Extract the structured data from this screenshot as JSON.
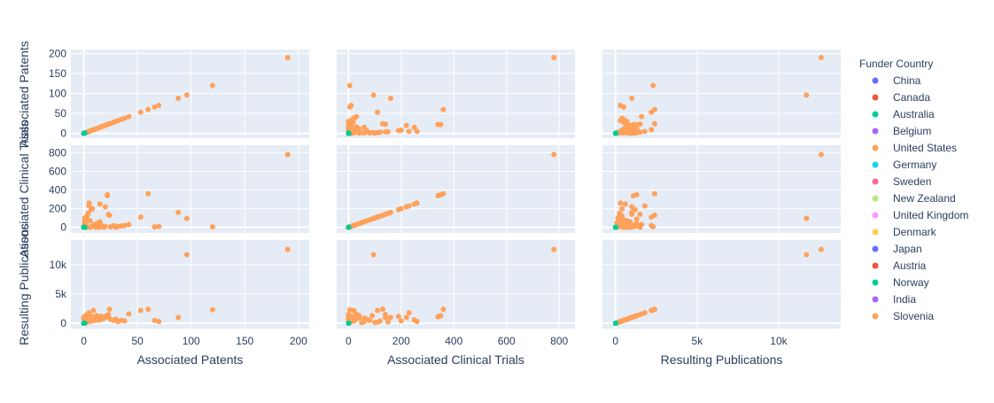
{
  "chart_data": {
    "type": "scatter",
    "variables": [
      {
        "name": "Associated Patents",
        "row_label": "Associated Patents",
        "col_label": "Associated Patents",
        "range": [
          -12,
          210
        ],
        "ticks": [
          0,
          50,
          100,
          150,
          200
        ],
        "tick_labels": [
          "0",
          "50",
          "100",
          "150",
          "200"
        ],
        "row_range": [
          -12,
          210
        ],
        "row_ticks": [
          0,
          50,
          100,
          150,
          200
        ],
        "row_tick_labels": [
          "0",
          "50",
          "100",
          "150",
          "200"
        ]
      },
      {
        "name": "Associated Clinical Trials",
        "row_label": "Associated Clinical Trials",
        "col_label": "Associated Clinical Trials",
        "range": [
          -45,
          860
        ],
        "ticks": [
          0,
          200,
          400,
          600,
          800
        ],
        "tick_labels": [
          "0",
          "200",
          "400",
          "600",
          "800"
        ],
        "row_range": [
          -60,
          880
        ],
        "row_ticks": [
          0,
          200,
          400,
          600,
          800
        ],
        "row_tick_labels": [
          "0",
          "200",
          "400",
          "600",
          "800"
        ]
      },
      {
        "name": "Resulting Publications",
        "row_label": "Resulting Publications",
        "col_label": "Resulting Publications",
        "range": [
          -800,
          13800
        ],
        "ticks": [
          0,
          5000,
          10000
        ],
        "tick_labels": [
          "0",
          "5k",
          "10k"
        ],
        "row_range": [
          -900,
          14200
        ],
        "row_ticks": [
          0,
          5000,
          10000
        ],
        "row_tick_labels": [
          "0",
          "5k",
          "10k"
        ]
      }
    ],
    "legend": {
      "title": "Funder Country",
      "position": "right",
      "entries": [
        {
          "name": "China",
          "color": "#636efa"
        },
        {
          "name": "Canada",
          "color": "#EF553B"
        },
        {
          "name": "Australia",
          "color": "#00cc96"
        },
        {
          "name": "Belgium",
          "color": "#ab63fa"
        },
        {
          "name": "United States",
          "color": "#FFA15A"
        },
        {
          "name": "Germany",
          "color": "#19d3f3"
        },
        {
          "name": "Sweden",
          "color": "#FF6692"
        },
        {
          "name": "New Zealand",
          "color": "#B6E880"
        },
        {
          "name": "United Kingdom",
          "color": "#FF97FF"
        },
        {
          "name": "Denmark",
          "color": "#FECB52"
        },
        {
          "name": "Japan",
          "color": "#636efa"
        },
        {
          "name": "Austria",
          "color": "#EF553B"
        },
        {
          "name": "Norway",
          "color": "#00cc96"
        },
        {
          "name": "India",
          "color": "#ab63fa"
        },
        {
          "name": "Slovenia",
          "color": "#FFA15A"
        }
      ]
    },
    "plot_bg": "#E5ECF6",
    "grid": true,
    "points": [
      {
        "country": "United States",
        "v": [
          190,
          780,
          12600
        ]
      },
      {
        "country": "United States",
        "v": [
          120,
          5,
          2300
        ]
      },
      {
        "country": "United States",
        "v": [
          96,
          95,
          11700
        ]
      },
      {
        "country": "United States",
        "v": [
          88,
          160,
          1000
        ]
      },
      {
        "country": "United States",
        "v": [
          70,
          10,
          300
        ]
      },
      {
        "country": "United States",
        "v": [
          66,
          5,
          500
        ]
      },
      {
        "country": "United States",
        "v": [
          53,
          110,
          2200
        ]
      },
      {
        "country": "United States",
        "v": [
          42,
          30,
          1600
        ]
      },
      {
        "country": "United States",
        "v": [
          38,
          20,
          400
        ]
      },
      {
        "country": "United States",
        "v": [
          35,
          15,
          500
        ]
      },
      {
        "country": "United States",
        "v": [
          32,
          10,
          300
        ]
      },
      {
        "country": "United States",
        "v": [
          28,
          18,
          500
        ]
      },
      {
        "country": "United States",
        "v": [
          25,
          5,
          700
        ]
      },
      {
        "country": "United States",
        "v": [
          22,
          350,
          1300
        ]
      },
      {
        "country": "United States",
        "v": [
          22,
          340,
          1100
        ]
      },
      {
        "country": "United States",
        "v": [
          20,
          220,
          1000
        ]
      },
      {
        "country": "United States",
        "v": [
          23,
          140,
          1500
        ]
      },
      {
        "country": "United States",
        "v": [
          24,
          130,
          2400
        ]
      },
      {
        "country": "United States",
        "v": [
          20,
          10,
          1200
        ]
      },
      {
        "country": "United States",
        "v": [
          18,
          5,
          800
        ]
      },
      {
        "country": "United States",
        "v": [
          16,
          30,
          1200
        ]
      },
      {
        "country": "United States",
        "v": [
          15,
          60,
          900
        ]
      },
      {
        "country": "United States",
        "v": [
          12,
          40,
          1300
        ]
      },
      {
        "country": "United States",
        "v": [
          10,
          25,
          600
        ]
      },
      {
        "country": "United States",
        "v": [
          9,
          20,
          2200
        ]
      },
      {
        "country": "United States",
        "v": [
          8,
          15,
          1100
        ]
      },
      {
        "country": "United States",
        "v": [
          7,
          190,
          1200
        ]
      },
      {
        "country": "United States",
        "v": [
          6,
          70,
          700
        ]
      },
      {
        "country": "United States",
        "v": [
          5,
          260,
          300
        ]
      },
      {
        "country": "United States",
        "v": [
          5,
          230,
          1800
        ]
      },
      {
        "country": "United States",
        "v": [
          4,
          140,
          1000
        ]
      },
      {
        "country": "United States",
        "v": [
          3,
          120,
          400
        ]
      },
      {
        "country": "United States",
        "v": [
          2,
          110,
          200
        ]
      },
      {
        "country": "United States",
        "v": [
          2,
          90,
          1300
        ]
      },
      {
        "country": "United States",
        "v": [
          1,
          80,
          500
        ]
      },
      {
        "country": "United States",
        "v": [
          1,
          60,
          300
        ]
      },
      {
        "country": "United States",
        "v": [
          1,
          40,
          900
        ]
      },
      {
        "country": "United States",
        "v": [
          1,
          20,
          1200
        ]
      },
      {
        "country": "United States",
        "v": [
          0,
          10,
          800
        ]
      },
      {
        "country": "United States",
        "v": [
          0,
          5,
          1000
        ]
      },
      {
        "country": "United States",
        "v": [
          3,
          0,
          1500
        ]
      },
      {
        "country": "United States",
        "v": [
          6,
          0,
          700
        ]
      },
      {
        "country": "United States",
        "v": [
          11,
          0,
          500
        ]
      },
      {
        "country": "United States",
        "v": [
          14,
          0,
          600
        ]
      },
      {
        "country": "United States",
        "v": [
          19,
          0,
          900
        ]
      },
      {
        "country": "United States",
        "v": [
          30,
          0,
          700
        ]
      },
      {
        "country": "United States",
        "v": [
          2,
          50,
          100
        ]
      },
      {
        "country": "United States",
        "v": [
          1,
          100,
          150
        ]
      },
      {
        "country": "United States",
        "v": [
          4,
          150,
          250
        ]
      },
      {
        "country": "United States",
        "v": [
          8,
          200,
          400
        ]
      },
      {
        "country": "United States",
        "v": [
          15,
          250,
          600
        ]
      },
      {
        "country": "United States",
        "v": [
          60,
          360,
          2400
        ]
      },
      {
        "country": "United States",
        "v": [
          0,
          2,
          50
        ]
      },
      {
        "country": "United States",
        "v": [
          1,
          3,
          120
        ]
      },
      {
        "country": "United States",
        "v": [
          2,
          6,
          200
        ]
      },
      {
        "country": "United States",
        "v": [
          3,
          8,
          350
        ]
      },
      {
        "country": "Australia",
        "v": [
          0,
          0,
          0
        ]
      },
      {
        "country": "Australia",
        "v": [
          1,
          1,
          20
        ]
      },
      {
        "country": "Norway",
        "v": [
          0,
          1,
          10
        ]
      }
    ]
  }
}
